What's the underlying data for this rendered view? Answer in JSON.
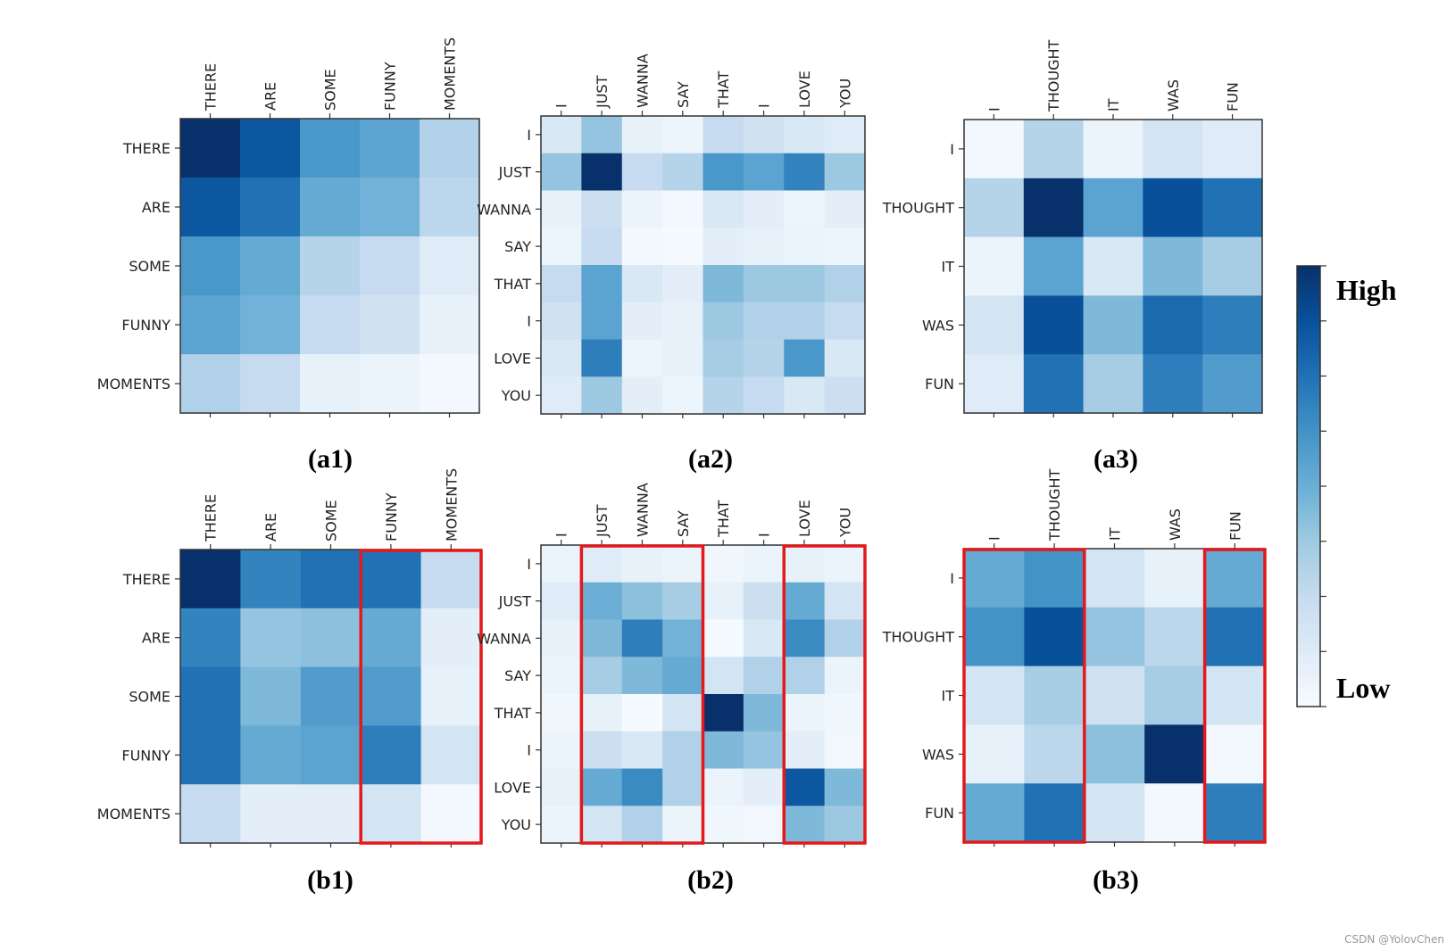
{
  "chart_data": [
    {
      "id": "a1",
      "type": "heatmap",
      "title": "(a1)",
      "x": [
        "THERE",
        "ARE",
        "SOME",
        "FUNNY",
        "MOMENTS"
      ],
      "y": [
        "THERE",
        "ARE",
        "SOME",
        "FUNNY",
        "MOMENTS"
      ],
      "values": [
        [
          1.0,
          0.85,
          0.6,
          0.55,
          0.32
        ],
        [
          0.85,
          0.75,
          0.52,
          0.48,
          0.28
        ],
        [
          0.6,
          0.52,
          0.3,
          0.25,
          0.12
        ],
        [
          0.55,
          0.48,
          0.25,
          0.2,
          0.08
        ],
        [
          0.32,
          0.25,
          0.08,
          0.06,
          0.02
        ]
      ],
      "highlight_cols": []
    },
    {
      "id": "a2",
      "type": "heatmap",
      "title": "(a2)",
      "x": [
        "I",
        "JUST",
        "WANNA",
        "SAY",
        "THAT",
        "I",
        "LOVE",
        "YOU"
      ],
      "y": [
        "I",
        "JUST",
        "WANNA",
        "SAY",
        "THAT",
        "I",
        "LOVE",
        "YOU"
      ],
      "values": [
        [
          0.15,
          0.4,
          0.08,
          0.05,
          0.25,
          0.2,
          0.15,
          0.12
        ],
        [
          0.4,
          1.0,
          0.25,
          0.3,
          0.6,
          0.55,
          0.68,
          0.38
        ],
        [
          0.08,
          0.22,
          0.06,
          0.02,
          0.15,
          0.1,
          0.05,
          0.1
        ],
        [
          0.05,
          0.25,
          0.02,
          0.01,
          0.1,
          0.08,
          0.06,
          0.05
        ],
        [
          0.25,
          0.55,
          0.15,
          0.1,
          0.45,
          0.38,
          0.38,
          0.32
        ],
        [
          0.2,
          0.55,
          0.1,
          0.08,
          0.38,
          0.32,
          0.32,
          0.25
        ],
        [
          0.15,
          0.7,
          0.05,
          0.08,
          0.35,
          0.3,
          0.6,
          0.15
        ],
        [
          0.12,
          0.38,
          0.1,
          0.05,
          0.3,
          0.25,
          0.15,
          0.22
        ]
      ],
      "highlight_cols": []
    },
    {
      "id": "a3",
      "type": "heatmap",
      "title": "(a3)",
      "x": [
        "I",
        "THOUGHT",
        "IT",
        "WAS",
        "FUN"
      ],
      "y": [
        "I",
        "THOUGHT",
        "IT",
        "WAS",
        "FUN"
      ],
      "values": [
        [
          0.02,
          0.3,
          0.06,
          0.18,
          0.12
        ],
        [
          0.3,
          1.0,
          0.55,
          0.88,
          0.75
        ],
        [
          0.06,
          0.55,
          0.15,
          0.45,
          0.35
        ],
        [
          0.18,
          0.88,
          0.45,
          0.78,
          0.7
        ],
        [
          0.12,
          0.75,
          0.35,
          0.7,
          0.58
        ]
      ],
      "highlight_cols": []
    },
    {
      "id": "b1",
      "type": "heatmap",
      "title": "(b1)",
      "x": [
        "THERE",
        "ARE",
        "SOME",
        "FUNNY",
        "MOMENTS"
      ],
      "y": [
        "THERE",
        "ARE",
        "SOME",
        "FUNNY",
        "MOMENTS"
      ],
      "values": [
        [
          1.0,
          0.68,
          0.75,
          0.75,
          0.25
        ],
        [
          0.68,
          0.4,
          0.42,
          0.52,
          0.1
        ],
        [
          0.75,
          0.45,
          0.58,
          0.58,
          0.08
        ],
        [
          0.75,
          0.52,
          0.55,
          0.7,
          0.18
        ],
        [
          0.25,
          0.1,
          0.1,
          0.18,
          0.02
        ]
      ],
      "highlight_cols": [
        [
          3,
          4
        ]
      ]
    },
    {
      "id": "b2",
      "type": "heatmap",
      "title": "(b2)",
      "x": [
        "I",
        "JUST",
        "WANNA",
        "SAY",
        "THAT",
        "I",
        "LOVE",
        "YOU"
      ],
      "y": [
        "I",
        "JUST",
        "WANNA",
        "SAY",
        "THAT",
        "I",
        "LOVE",
        "YOU"
      ],
      "values": [
        [
          0.06,
          0.12,
          0.08,
          0.06,
          0.04,
          0.06,
          0.08,
          0.06
        ],
        [
          0.12,
          0.5,
          0.42,
          0.35,
          0.08,
          0.22,
          0.52,
          0.18
        ],
        [
          0.08,
          0.45,
          0.7,
          0.48,
          0.01,
          0.15,
          0.65,
          0.32
        ],
        [
          0.06,
          0.35,
          0.45,
          0.52,
          0.18,
          0.32,
          0.32,
          0.06
        ],
        [
          0.04,
          0.08,
          0.01,
          0.18,
          1.0,
          0.45,
          0.06,
          0.04
        ],
        [
          0.06,
          0.22,
          0.15,
          0.32,
          0.45,
          0.4,
          0.1,
          0.03
        ],
        [
          0.08,
          0.52,
          0.65,
          0.32,
          0.06,
          0.1,
          0.85,
          0.45
        ],
        [
          0.06,
          0.18,
          0.32,
          0.06,
          0.04,
          0.03,
          0.45,
          0.38
        ]
      ],
      "highlight_cols": [
        [
          1,
          3
        ],
        [
          6,
          7
        ]
      ]
    },
    {
      "id": "b3",
      "type": "heatmap",
      "title": "(b3)",
      "x": [
        "I",
        "THOUGHT",
        "IT",
        "WAS",
        "FUN"
      ],
      "y": [
        "I",
        "THOUGHT",
        "IT",
        "WAS",
        "FUN"
      ],
      "values": [
        [
          0.52,
          0.62,
          0.18,
          0.08,
          0.52
        ],
        [
          0.62,
          0.88,
          0.4,
          0.28,
          0.75
        ],
        [
          0.18,
          0.35,
          0.2,
          0.35,
          0.18
        ],
        [
          0.08,
          0.28,
          0.42,
          1.0,
          0.02
        ],
        [
          0.52,
          0.75,
          0.18,
          0.02,
          0.7
        ]
      ],
      "highlight_cols": [
        [
          0,
          1
        ],
        [
          4,
          4
        ]
      ]
    }
  ],
  "colorbar": {
    "high_label": "High",
    "low_label": "Low",
    "colormap": "Blues",
    "range": [
      0,
      1
    ]
  },
  "colors": {
    "highlight": "#e3191c",
    "axis": "#333333"
  },
  "watermark": "CSDN @YolovChen"
}
